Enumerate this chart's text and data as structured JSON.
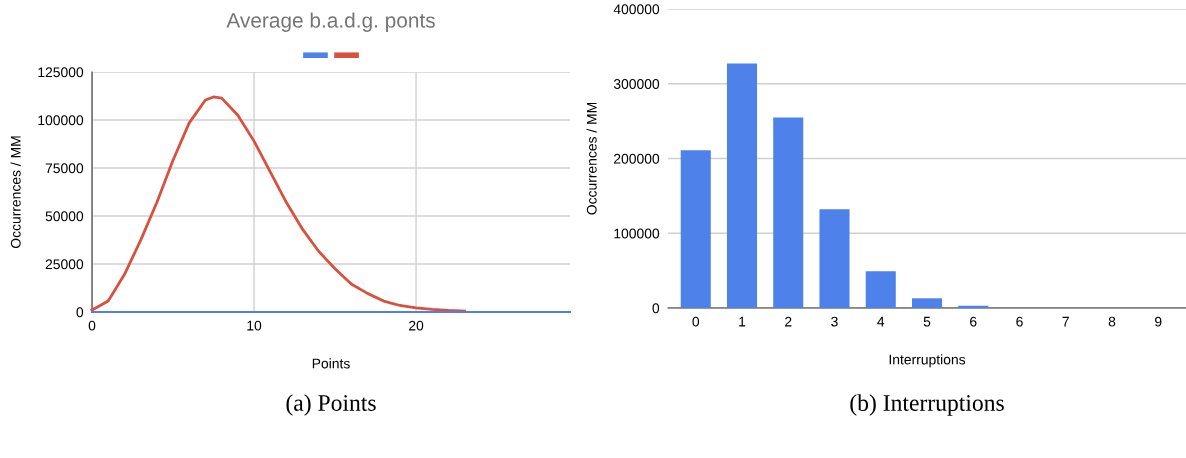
{
  "chart_data": [
    {
      "type": "line",
      "title": "Average b.a.d.g. ponts",
      "xlabel": "Points",
      "ylabel": "Occurrences / MM",
      "x": [
        0,
        1,
        2,
        3,
        4,
        5,
        6,
        7,
        7.5,
        8,
        9,
        10,
        11,
        12,
        13,
        14,
        15,
        16,
        17,
        18,
        19,
        20,
        21,
        22,
        23
      ],
      "series": [
        {
          "color": "#4f81ea",
          "x": [
            0,
            29.5
          ],
          "values": [
            0,
            0
          ]
        },
        {
          "color": "#d9503f",
          "values": [
            1000,
            5700,
            19500,
            37300,
            57000,
            79000,
            98500,
            110400,
            112000,
            111400,
            102500,
            89000,
            73000,
            57000,
            43000,
            31500,
            22500,
            14600,
            9700,
            5700,
            3400,
            2200,
            1400,
            800,
            500
          ]
        }
      ],
      "xlim": [
        0,
        29.5
      ],
      "xticks": [
        0,
        10,
        20
      ],
      "ylim": [
        0,
        125000
      ],
      "yticks": [
        0,
        25000,
        50000,
        75000,
        100000,
        125000
      ],
      "grid": true,
      "annotations": [
        "(a) Points"
      ]
    },
    {
      "type": "bar",
      "xlabel": "Interruptions",
      "ylabel": "Occurrences / MM",
      "categories": [
        "0",
        "1",
        "2",
        "3",
        "4",
        "5",
        "6",
        "6",
        "7",
        "8",
        "9"
      ],
      "values": [
        211000,
        327000,
        255000,
        132000,
        49000,
        13000,
        3000,
        0,
        0,
        0,
        0
      ],
      "color": "#4f81ea",
      "ylim": [
        0,
        400000
      ],
      "yticks": [
        0,
        100000,
        200000,
        300000,
        400000
      ],
      "grid": "y",
      "annotations": [
        "(b) Interruptions"
      ]
    }
  ]
}
